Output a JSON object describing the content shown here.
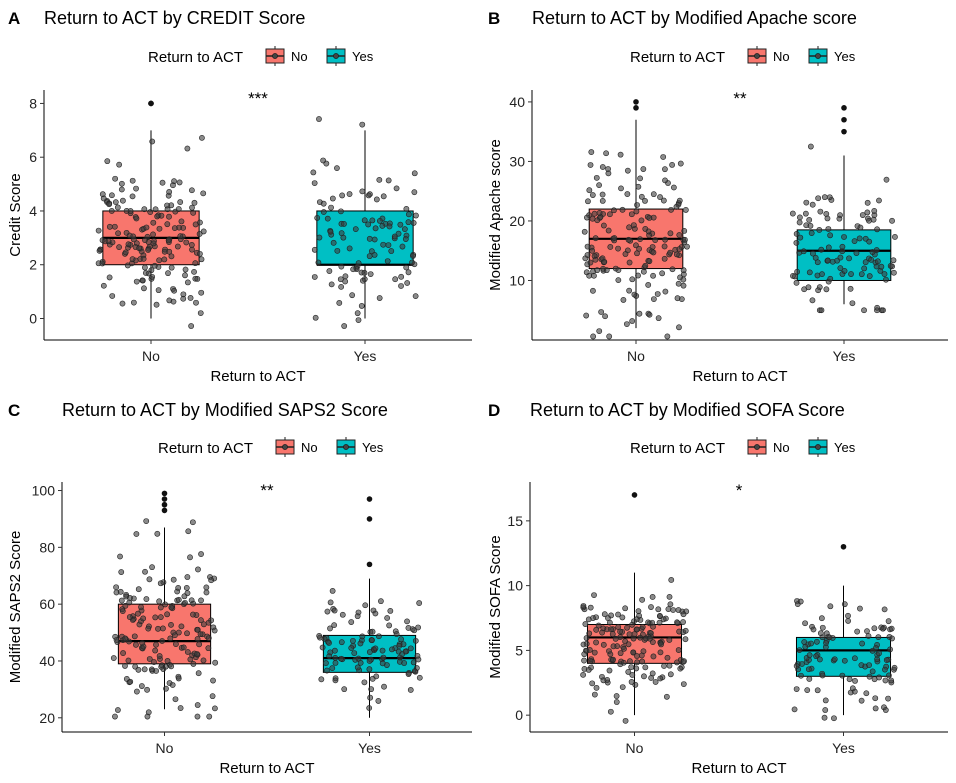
{
  "legend": {
    "title": "Return to ACT",
    "items": [
      "No",
      "Yes"
    ]
  },
  "colors": {
    "No": "#F8766D",
    "Yes": "#00BFC4"
  },
  "chart_data": [
    {
      "panel": "A",
      "type": "box",
      "title": "Return to ACT by CREDIT Score",
      "xlabel": "Return to ACT",
      "ylabel": "Credit Score",
      "categories": [
        "No",
        "Yes"
      ],
      "ylim": [
        -0.8,
        8.5
      ],
      "yticks": [
        0,
        2,
        4,
        6,
        8
      ],
      "significance": "***",
      "boxes": [
        {
          "group": "No",
          "min": 0,
          "q1": 2,
          "median": 3,
          "q3": 4,
          "max": 7
        },
        {
          "group": "Yes",
          "min": 0,
          "q1": 2,
          "median": 2,
          "q3": 4,
          "max": 7
        }
      ],
      "outliers": [
        {
          "group": "No",
          "values": [
            8,
            8
          ]
        }
      ]
    },
    {
      "panel": "B",
      "type": "box",
      "title": "Return to ACT by Modified Apache score",
      "xlabel": "Return to ACT",
      "ylabel": "Modified Apache score",
      "categories": [
        "No",
        "Yes"
      ],
      "ylim": [
        0,
        42
      ],
      "yticks": [
        10,
        20,
        30,
        40
      ],
      "significance": "**",
      "boxes": [
        {
          "group": "No",
          "min": 2,
          "q1": 12,
          "median": 17,
          "q3": 22,
          "max": 37
        },
        {
          "group": "Yes",
          "min": 6,
          "q1": 10,
          "median": 15,
          "q3": 18.5,
          "max": 31
        }
      ],
      "outliers": [
        {
          "group": "No",
          "values": [
            40,
            39
          ]
        },
        {
          "group": "Yes",
          "values": [
            39,
            37,
            35
          ]
        }
      ]
    },
    {
      "panel": "C",
      "type": "box",
      "title": "Return to ACT by Modified SAPS2 Score",
      "xlabel": "Return to ACT",
      "ylabel": "Modified SAPS2 Score",
      "categories": [
        "No",
        "Yes"
      ],
      "ylim": [
        15,
        103
      ],
      "yticks": [
        20,
        40,
        60,
        80,
        100
      ],
      "significance": "**",
      "boxes": [
        {
          "group": "No",
          "min": 23,
          "q1": 39,
          "median": 47,
          "q3": 60,
          "max": 87
        },
        {
          "group": "Yes",
          "min": 20,
          "q1": 36,
          "median": 41,
          "q3": 49,
          "max": 69
        }
      ],
      "outliers": [
        {
          "group": "No",
          "values": [
            99,
            97,
            95,
            93
          ]
        },
        {
          "group": "Yes",
          "values": [
            97,
            90,
            74
          ]
        }
      ]
    },
    {
      "panel": "D",
      "type": "box",
      "title": "Return to ACT by Modified SOFA Score",
      "xlabel": "Return to ACT",
      "ylabel": "Modified SOFA Score",
      "categories": [
        "No",
        "Yes"
      ],
      "ylim": [
        -1.3,
        18
      ],
      "yticks": [
        0,
        5,
        10,
        15
      ],
      "significance": "*",
      "boxes": [
        {
          "group": "No",
          "min": 0,
          "q1": 4,
          "median": 6,
          "q3": 7,
          "max": 11
        },
        {
          "group": "Yes",
          "min": 0,
          "q1": 3,
          "median": 5,
          "q3": 6,
          "max": 10
        }
      ],
      "outliers": [
        {
          "group": "No",
          "values": [
            17
          ]
        },
        {
          "group": "Yes",
          "values": [
            13
          ]
        }
      ]
    }
  ]
}
